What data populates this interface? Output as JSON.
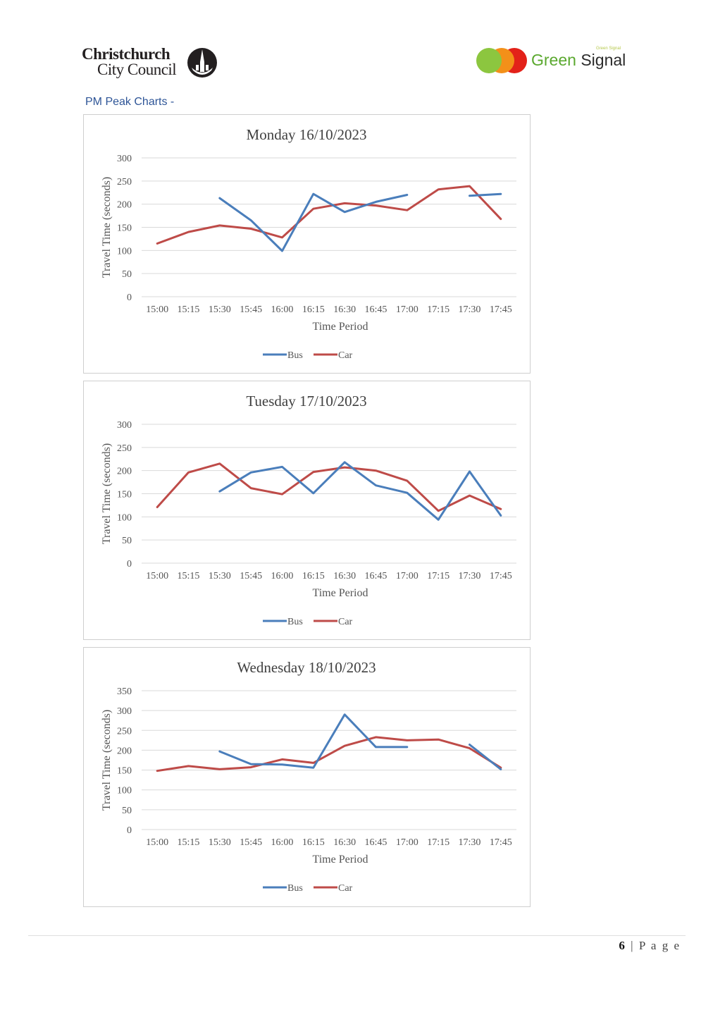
{
  "header": {
    "council_line1": "Christchurch",
    "council_line2": "City Council",
    "partner_word1": "Green",
    "partner_word2": "Signal",
    "partner_tagline": "Green Signal"
  },
  "section_title": "PM Peak Charts -",
  "footer": {
    "page_number": "6",
    "page_label": "| P a g e"
  },
  "colors": {
    "bus": "#4a7ebb",
    "car": "#be4b48",
    "grid": "#d9d9d9",
    "title_link": "#2e5597"
  },
  "chart_data": [
    {
      "type": "line",
      "title": "Monday 16/10/2023",
      "xlabel": "Time Period",
      "ylabel": "Travel Time (seconds)",
      "ylim": [
        0,
        300
      ],
      "yticks": [
        0,
        50,
        100,
        150,
        200,
        250,
        300
      ],
      "categories": [
        "15:00",
        "15:15",
        "15:30",
        "15:45",
        "16:00",
        "16:15",
        "16:30",
        "16:45",
        "17:00",
        "17:15",
        "17:30",
        "17:45"
      ],
      "series": [
        {
          "name": "Bus",
          "values": [
            null,
            null,
            213,
            165,
            99,
            222,
            183,
            205,
            220,
            null,
            218,
            222
          ]
        },
        {
          "name": "Car",
          "values": [
            115,
            140,
            154,
            147,
            128,
            190,
            202,
            197,
            187,
            232,
            239,
            168
          ]
        }
      ],
      "legend": "bottom"
    },
    {
      "type": "line",
      "title": "Tuesday 17/10/2023",
      "xlabel": "Time Period",
      "ylabel": "Travel Time (seconds)",
      "ylim": [
        0,
        300
      ],
      "yticks": [
        0,
        50,
        100,
        150,
        200,
        250,
        300
      ],
      "categories": [
        "15:00",
        "15:15",
        "15:30",
        "15:45",
        "16:00",
        "16:15",
        "16:30",
        "16:45",
        "17:00",
        "17:15",
        "17:30",
        "17:45"
      ],
      "series": [
        {
          "name": "Bus",
          "values": [
            null,
            null,
            155,
            196,
            208,
            151,
            218,
            168,
            152,
            94,
            198,
            103
          ]
        },
        {
          "name": "Car",
          "values": [
            121,
            196,
            215,
            162,
            149,
            197,
            207,
            200,
            178,
            113,
            146,
            117
          ]
        }
      ],
      "legend": "bottom"
    },
    {
      "type": "line",
      "title": "Wednesday 18/10/2023",
      "xlabel": "Time Period",
      "ylabel": "Travel Time (seconds)",
      "ylim": [
        0,
        350
      ],
      "yticks": [
        0,
        50,
        100,
        150,
        200,
        250,
        300,
        350
      ],
      "categories": [
        "15:00",
        "15:15",
        "15:30",
        "15:45",
        "16:00",
        "16:15",
        "16:30",
        "16:45",
        "17:00",
        "17:15",
        "17:30",
        "17:45"
      ],
      "series": [
        {
          "name": "Bus",
          "values": [
            null,
            null,
            197,
            165,
            164,
            156,
            290,
            208,
            208,
            null,
            214,
            152
          ]
        },
        {
          "name": "Car",
          "values": [
            148,
            160,
            152,
            157,
            177,
            168,
            211,
            233,
            225,
            227,
            205,
            156
          ]
        }
      ],
      "legend": "bottom"
    }
  ]
}
